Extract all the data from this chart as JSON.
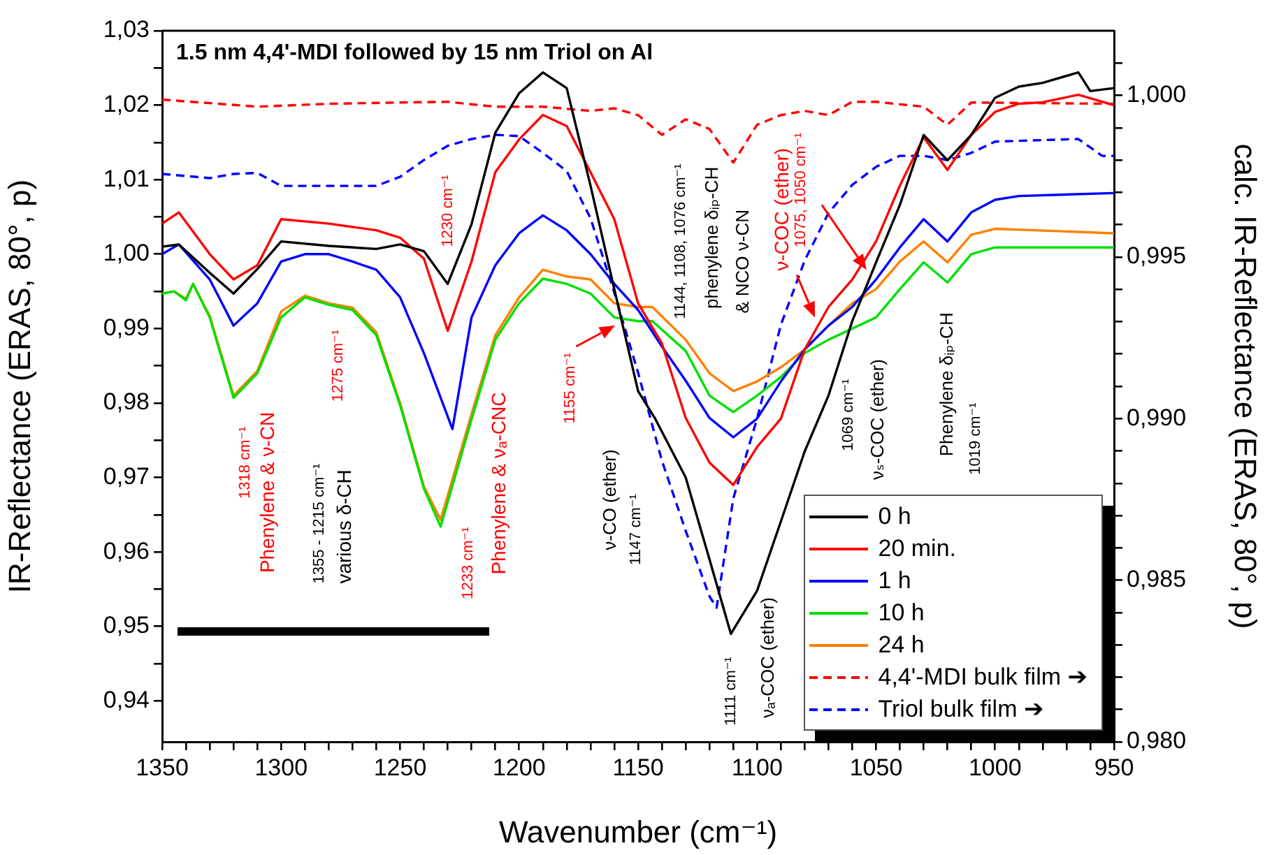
{
  "chart_data": {
    "type": "line",
    "title": "1.5 nm 4,4'-MDI followed by 15 nm Triol on Al",
    "xlabel": "Wavenumber (cm⁻¹)",
    "ylabel": "IR-Reflectance (ERAS, 80°, p)",
    "y2label": "calc. IR-Reflectance (ERAS, 80°, p)",
    "xlim": [
      1350,
      950
    ],
    "ylim": [
      0.9345,
      1.03
    ],
    "y2lim": [
      0.98,
      1.002
    ],
    "xticks": [
      1350,
      {
        "value": 1340,
        "label": null
      },
      {
        "value": 1330,
        "label": null
      },
      {
        "value": 1320,
        "label": null
      },
      {
        "value": 1310,
        "label": null
      },
      1300,
      {
        "value": 1290,
        "label": null
      },
      {
        "value": 1280,
        "label": null
      },
      {
        "value": 1270,
        "label": null
      },
      {
        "value": 1260,
        "label": null
      },
      1250,
      {
        "value": 1240,
        "label": null
      },
      {
        "value": 1230,
        "label": null
      },
      {
        "value": 1220,
        "label": null
      },
      {
        "value": 1210,
        "label": null
      },
      1200,
      {
        "value": 1190,
        "label": null
      },
      {
        "value": 1180,
        "label": null
      },
      {
        "value": 1170,
        "label": null
      },
      {
        "value": 1160,
        "label": null
      },
      1150,
      {
        "value": 1140,
        "label": null
      },
      {
        "value": 1130,
        "label": null
      },
      {
        "value": 1120,
        "label": null
      },
      {
        "value": 1110,
        "label": null
      },
      1100,
      {
        "value": 1090,
        "label": null
      },
      {
        "value": 1080,
        "label": null
      },
      {
        "value": 1070,
        "label": null
      },
      {
        "value": 1060,
        "label": null
      },
      1050,
      {
        "value": 1040,
        "label": null
      },
      {
        "value": 1030,
        "label": null
      },
      {
        "value": 1020,
        "label": null
      },
      {
        "value": 1010,
        "label": null
      },
      1000,
      {
        "value": 990,
        "label": null
      },
      {
        "value": 980,
        "label": null
      },
      {
        "value": 970,
        "label": null
      },
      {
        "value": 960,
        "label": null
      },
      950
    ],
    "yticks": [
      {
        "value": 0.94,
        "label": "0,94"
      },
      {
        "value": 0.945,
        "label": null
      },
      {
        "value": 0.95,
        "label": "0,95"
      },
      {
        "value": 0.955,
        "label": null
      },
      {
        "value": 0.96,
        "label": "0,96"
      },
      {
        "value": 0.965,
        "label": null
      },
      {
        "value": 0.97,
        "label": "0,97"
      },
      {
        "value": 0.975,
        "label": null
      },
      {
        "value": 0.98,
        "label": "0,98"
      },
      {
        "value": 0.985,
        "label": null
      },
      {
        "value": 0.99,
        "label": "0,99"
      },
      {
        "value": 0.995,
        "label": null
      },
      {
        "value": 1.0,
        "label": "1,00"
      },
      {
        "value": 1.005,
        "label": null
      },
      {
        "value": 1.01,
        "label": "1,01"
      },
      {
        "value": 1.015,
        "label": null
      },
      {
        "value": 1.02,
        "label": "1,02"
      },
      {
        "value": 1.025,
        "label": null
      },
      {
        "value": 1.03,
        "label": "1,03"
      }
    ],
    "y2ticks": [
      {
        "value": 0.98,
        "label": "0,980"
      },
      {
        "value": 0.981,
        "label": null
      },
      {
        "value": 0.982,
        "label": null
      },
      {
        "value": 0.983,
        "label": null
      },
      {
        "value": 0.984,
        "label": null
      },
      {
        "value": 0.985,
        "label": "0,985"
      },
      {
        "value": 0.986,
        "label": null
      },
      {
        "value": 0.987,
        "label": null
      },
      {
        "value": 0.988,
        "label": null
      },
      {
        "value": 0.989,
        "label": null
      },
      {
        "value": 0.99,
        "label": "0,990"
      },
      {
        "value": 0.991,
        "label": null
      },
      {
        "value": 0.992,
        "label": null
      },
      {
        "value": 0.993,
        "label": null
      },
      {
        "value": 0.994,
        "label": null
      },
      {
        "value": 0.995,
        "label": "0,995"
      },
      {
        "value": 0.996,
        "label": null
      },
      {
        "value": 0.997,
        "label": null
      },
      {
        "value": 0.998,
        "label": null
      },
      {
        "value": 0.999,
        "label": null
      },
      {
        "value": 1.0,
        "label": "1,000"
      },
      {
        "value": 1.001,
        "label": null
      }
    ],
    "legend": "bottom right",
    "series": [
      {
        "name": "0 h",
        "color": "#000000",
        "x": [
          1350,
          1343,
          1330,
          1320,
          1310,
          1300,
          1280,
          1260,
          1250,
          1240,
          1230,
          1220,
          1210,
          1200,
          1190,
          1180,
          1170,
          1160,
          1150,
          1143,
          1130,
          1120,
          1111,
          1100,
          1090,
          1080,
          1070,
          1060,
          1050,
          1040,
          1030,
          1020,
          1010,
          1000,
          990,
          980,
          965,
          960,
          950
        ],
        "values": [
          1.001,
          1.0013,
          0.9975,
          0.9947,
          0.998,
          1.0017,
          1.0011,
          1.0007,
          1.0013,
          1.0004,
          0.996,
          1.004,
          1.0163,
          1.0216,
          1.0244,
          1.0223,
          1.0092,
          0.9953,
          0.9816,
          0.978,
          0.97,
          0.959,
          0.949,
          0.9548,
          0.9641,
          0.9735,
          0.981,
          0.991,
          0.9989,
          1.0066,
          1.016,
          1.0126,
          1.016,
          1.021,
          1.0225,
          1.023,
          1.0244,
          1.0219,
          1.0223
        ]
      },
      {
        "name": "20 min.",
        "color": "#ff0000",
        "x": [
          1350,
          1343,
          1330,
          1320,
          1310,
          1300,
          1280,
          1260,
          1250,
          1240,
          1230,
          1220,
          1210,
          1200,
          1190,
          1180,
          1170,
          1160,
          1150,
          1140,
          1130,
          1120,
          1110,
          1100,
          1090,
          1080,
          1070,
          1060,
          1050,
          1040,
          1030,
          1020,
          1010,
          1000,
          990,
          980,
          965,
          950
        ],
        "values": [
          1.0041,
          1.0056,
          1.0,
          0.9966,
          0.9985,
          1.0047,
          1.0041,
          1.0032,
          1.0022,
          0.9994,
          0.9897,
          0.999,
          1.011,
          1.0154,
          1.0187,
          1.0172,
          1.011,
          1.0047,
          0.9934,
          0.988,
          0.978,
          0.972,
          0.969,
          0.9741,
          0.9779,
          0.9872,
          0.9929,
          0.9966,
          1.0017,
          1.0092,
          1.0157,
          1.0113,
          1.016,
          1.0191,
          1.0202,
          1.0204,
          1.0214,
          1.02
        ]
      },
      {
        "name": "1 h",
        "color": "#0000ff",
        "x": [
          1350,
          1343,
          1330,
          1320,
          1310,
          1300,
          1290,
          1280,
          1270,
          1260,
          1250,
          1240,
          1228,
          1220,
          1210,
          1200,
          1190,
          1180,
          1170,
          1160,
          1150,
          1140,
          1130,
          1120,
          1110,
          1100,
          1090,
          1080,
          1070,
          1060,
          1050,
          1040,
          1030,
          1020,
          1010,
          1000,
          990,
          950
        ],
        "values": [
          1.0,
          1.0013,
          0.9966,
          0.9904,
          0.9934,
          0.999,
          1.0,
          1.0,
          0.999,
          0.9979,
          0.9942,
          0.9867,
          0.9765,
          0.9915,
          0.9985,
          1.0028,
          1.0052,
          1.0032,
          1.0,
          0.996,
          0.9925,
          0.9876,
          0.983,
          0.978,
          0.9754,
          0.9779,
          0.9829,
          0.9872,
          0.9904,
          0.9929,
          0.9966,
          1.0009,
          1.0047,
          1.0017,
          1.0056,
          1.0073,
          1.0078,
          1.0082
        ]
      },
      {
        "name": "10 h",
        "color": "#00e000",
        "x": [
          1350,
          1345,
          1340,
          1337,
          1330,
          1320,
          1310,
          1300,
          1290,
          1280,
          1270,
          1260,
          1250,
          1240,
          1233,
          1220,
          1210,
          1200,
          1190,
          1180,
          1170,
          1160,
          1150,
          1144,
          1130,
          1120,
          1110,
          1100,
          1090,
          1080,
          1070,
          1060,
          1050,
          1040,
          1030,
          1020,
          1010,
          1000,
          950
        ],
        "values": [
          0.9947,
          0.995,
          0.9938,
          0.996,
          0.9915,
          0.9807,
          0.984,
          0.9915,
          0.9942,
          0.9932,
          0.9925,
          0.9891,
          0.9797,
          0.9685,
          0.9634,
          0.9778,
          0.9885,
          0.9934,
          0.9967,
          0.996,
          0.9947,
          0.9915,
          0.991,
          0.991,
          0.987,
          0.981,
          0.9788,
          0.981,
          0.9835,
          0.9867,
          0.9885,
          0.99,
          0.9915,
          0.9953,
          0.9989,
          0.9962,
          1.0,
          1.0009,
          1.0009
        ]
      },
      {
        "name": "24 h",
        "color": "#ff8000",
        "x": [
          1350,
          1345,
          1340,
          1337,
          1330,
          1320,
          1310,
          1300,
          1290,
          1280,
          1270,
          1260,
          1250,
          1240,
          1233,
          1220,
          1210,
          1200,
          1190,
          1180,
          1170,
          1160,
          1150,
          1144,
          1130,
          1120,
          1110,
          1100,
          1090,
          1080,
          1070,
          1060,
          1050,
          1040,
          1030,
          1020,
          1010,
          1000,
          950
        ],
        "values": [
          0.9947,
          0.995,
          0.994,
          0.996,
          0.9917,
          0.981,
          0.9843,
          0.9923,
          0.9944,
          0.9934,
          0.9928,
          0.9895,
          0.98,
          0.9688,
          0.9643,
          0.9785,
          0.9891,
          0.9942,
          0.9979,
          0.997,
          0.9966,
          0.9934,
          0.9929,
          0.9929,
          0.9885,
          0.984,
          0.9816,
          0.9829,
          0.9848,
          0.9872,
          0.9904,
          0.9934,
          0.9953,
          0.999,
          1.0017,
          0.9989,
          1.0026,
          1.0034,
          1.0028
        ]
      },
      {
        "name": "4,4'-MDI bulk film ➔",
        "color": "#ff0000",
        "axis": "y2",
        "line_style": "dashed",
        "x": [
          1350,
          1310,
          1280,
          1250,
          1230,
          1210,
          1190,
          1170,
          1160,
          1150,
          1140,
          1130,
          1120,
          1110,
          1100,
          1090,
          1080,
          1070,
          1060,
          1050,
          1030,
          1020,
          1010,
          950
        ],
        "values": [
          0.99987,
          0.99965,
          0.99974,
          0.99978,
          0.9998,
          0.99965,
          0.99965,
          0.99952,
          0.9996,
          0.99939,
          0.99878,
          0.99926,
          0.99896,
          0.99792,
          0.99909,
          0.99939,
          0.99952,
          0.99939,
          0.9998,
          0.9998,
          0.99965,
          0.99909,
          0.99978,
          0.99974
        ]
      },
      {
        "name": "Triol bulk film ➔",
        "color": "#0000ff",
        "axis": "y2",
        "line_style": "dashed",
        "x": [
          1350,
          1330,
          1320,
          1310,
          1300,
          1260,
          1250,
          1240,
          1230,
          1220,
          1210,
          1200,
          1190,
          1180,
          1170,
          1160,
          1150,
          1140,
          1130,
          1120,
          1117,
          1110,
          1100,
          1090,
          1080,
          1070,
          1060,
          1050,
          1040,
          1030,
          1020,
          1010,
          1000,
          965,
          955,
          950
        ],
        "values": [
          0.99757,
          0.99744,
          0.99757,
          0.9976,
          0.9972,
          0.9972,
          0.99748,
          0.998,
          0.99844,
          0.99865,
          0.99878,
          0.99874,
          0.99822,
          0.99766,
          0.9962,
          0.9939,
          0.99142,
          0.9887,
          0.98653,
          0.9845,
          0.98415,
          0.98753,
          0.99,
          0.9929,
          0.99489,
          0.99636,
          0.99723,
          0.99779,
          0.99813,
          0.99813,
          0.998,
          0.99822,
          0.99857,
          0.99865,
          0.99813,
          0.99813
        ]
      }
    ],
    "annotations": [
      "1318 cm⁻¹",
      "Phenylene & ν-CN",
      "1355 - 1215 cm⁻¹",
      "various δ-CH",
      "1275 cm⁻¹",
      "1230 cm⁻¹",
      "1233 cm⁻¹",
      "Phenylene & νₐ-CNC",
      "1155 cm⁻¹",
      "ν-CO (ether)",
      "1147 cm⁻¹",
      "1111 cm⁻¹",
      "νₐ-COC (ether)",
      "1144, 1108, 1076 cm⁻¹",
      "phenylene δᵢₚ-CH",
      "& NCO ν-CN",
      "ν-COC (ether)",
      "1075, 1050 cm⁻¹",
      "1069 cm⁻¹",
      "νₛ-COC (ether)",
      "Phenylene δᵢₚ-CH",
      "1019 cm⁻¹"
    ]
  }
}
